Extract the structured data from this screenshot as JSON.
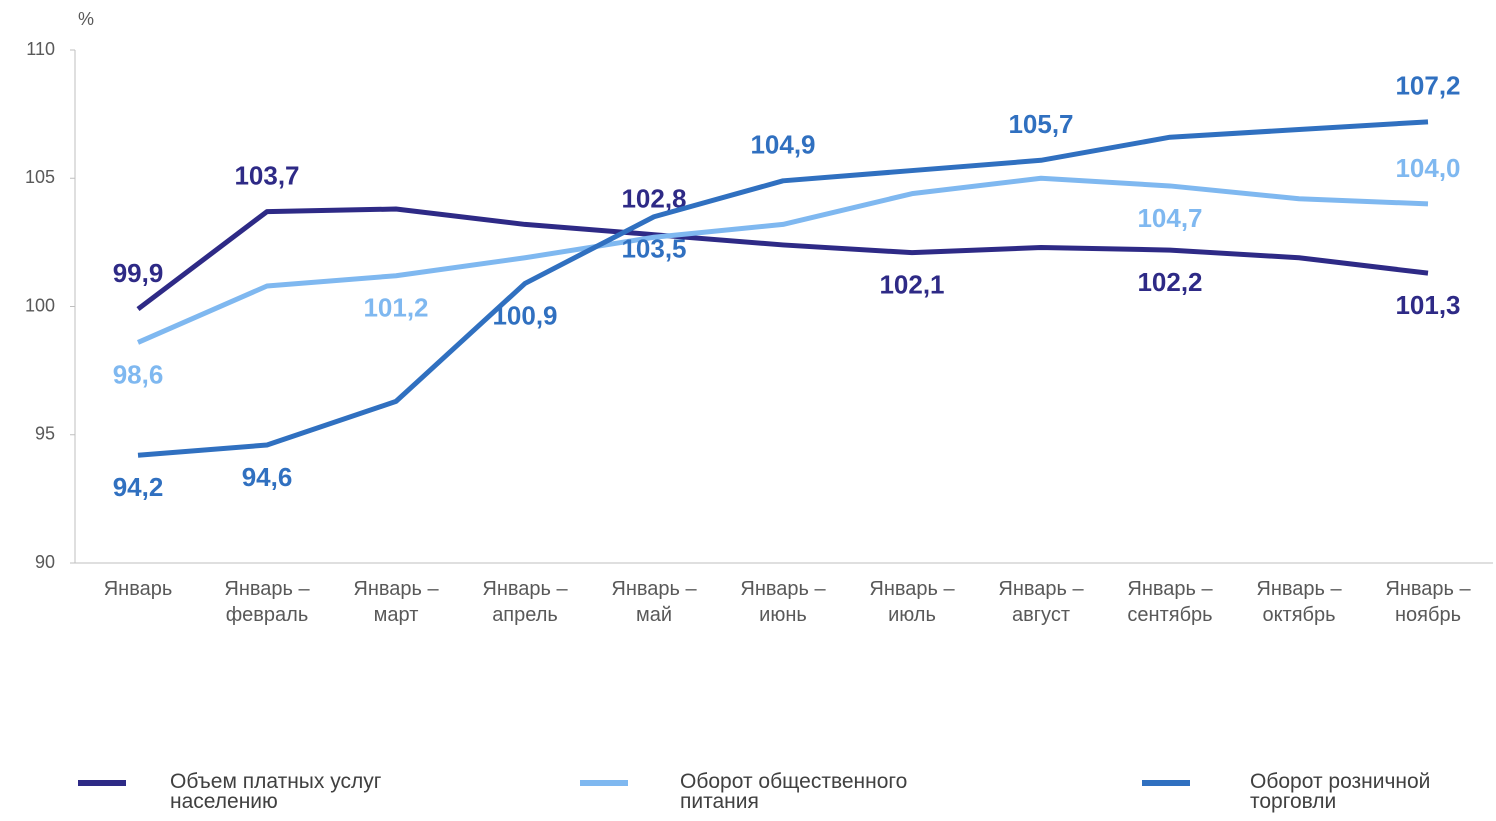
{
  "chart_data": {
    "type": "line",
    "ylabel": "%",
    "categories": [
      "Январь",
      "Январь – февраль",
      "Январь – март",
      "Январь – апрель",
      "Январь – май",
      "Январь – июнь",
      "Январь – июль",
      "Январь – август",
      "Январь – сентябрь",
      "Январь – октябрь",
      "Январь – ноябрь"
    ],
    "series": [
      {
        "name": "Объем платных услуг населению",
        "color": "#2e2a86",
        "values": [
          99.9,
          103.7,
          103.8,
          103.2,
          102.8,
          102.4,
          102.1,
          102.3,
          102.2,
          101.9,
          101.3
        ],
        "value_labels": [
          "99,9",
          "103,7",
          null,
          null,
          "102,8",
          null,
          "102,1",
          null,
          "102,2",
          null,
          "101,3"
        ]
      },
      {
        "name": "Оборот общественного питания",
        "color": "#7fb8f0",
        "values": [
          98.6,
          100.8,
          101.2,
          101.9,
          102.7,
          103.2,
          104.4,
          105.0,
          104.7,
          104.2,
          104.0
        ],
        "value_labels": [
          "98,6",
          null,
          "101,2",
          null,
          null,
          null,
          null,
          null,
          "104,7",
          null,
          "104,0"
        ]
      },
      {
        "name": "Оборот розничной торговли",
        "color": "#3070c0",
        "values": [
          94.2,
          94.6,
          96.3,
          100.9,
          103.5,
          104.9,
          105.3,
          105.7,
          106.6,
          106.9,
          107.2
        ],
        "value_labels": [
          "94,2",
          "94,6",
          null,
          "100,9",
          "103,5",
          "104,9",
          null,
          "105,7",
          null,
          null,
          "107,2"
        ]
      }
    ],
    "ylim": [
      90,
      110
    ],
    "yticks": [
      90,
      95,
      100,
      105,
      110
    ],
    "grid": false
  }
}
